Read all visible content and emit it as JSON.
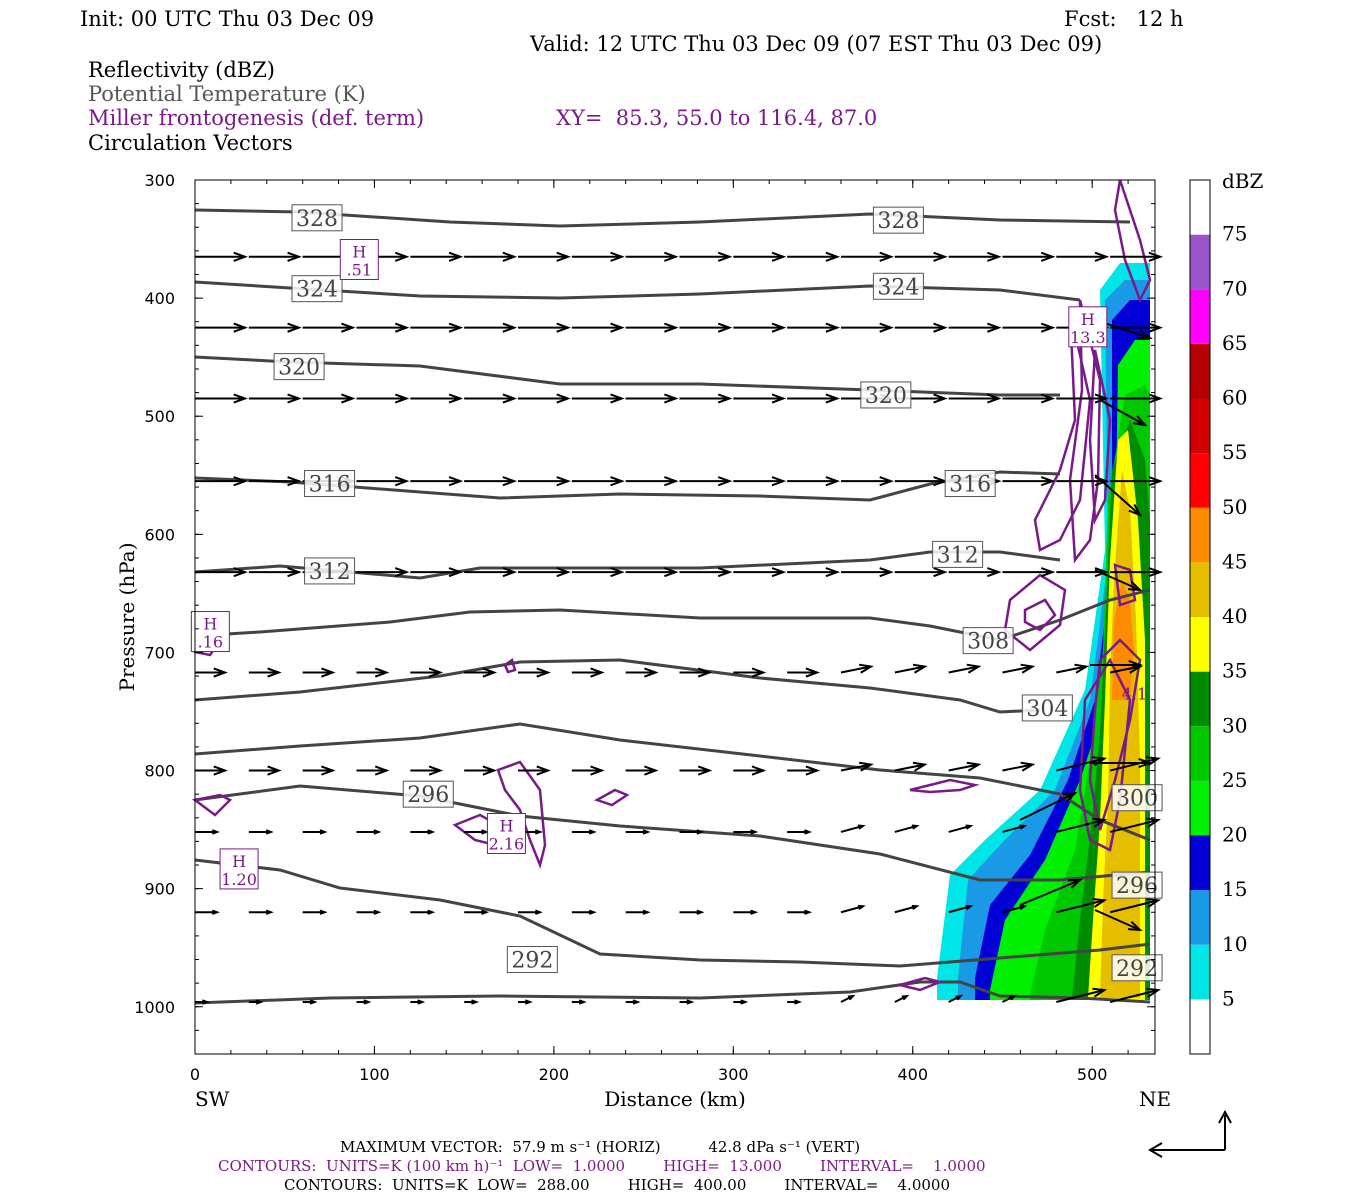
{
  "header": {
    "init": "Init: 00 UTC Thu 03 Dec 09",
    "fcst": "Fcst:   12 h",
    "valid": "Valid: 12 UTC Thu 03 Dec 09 (07 EST Thu 03 Dec 09)",
    "field1": "Reflectivity (dBZ)",
    "field2": "Potential Temperature (K)",
    "field3": "Miller frontogenesis (def. term)",
    "xy": "XY=  85.3, 55.0 to 116.4, 87.0",
    "field4": "Circulation Vectors"
  },
  "footer": {
    "max_vector": "MAXIMUM VECTOR:  57.9 m s⁻¹ (HORIZ)          42.8 dPa s⁻¹ (VERT)",
    "contours_fronto": "CONTOURS:  UNITS=K (100 km h)⁻¹  LOW=  1.0000        HIGH=  13.000        INTERVAL=    1.0000",
    "contours_theta": "CONTOURS:  UNITS=K  LOW=  288.00        HIGH=  400.00        INTERVAL=    4.0000"
  },
  "colors": {
    "theta": "#444444",
    "fronto": "#7a1a8a",
    "vectors": "#000000"
  },
  "chart_data": {
    "type": "cross-section",
    "xlabel": "Distance (km)",
    "ylabel": "Pressure (hPa)",
    "x_left_label": "SW",
    "x_right_label": "NE",
    "xlim": [
      0,
      535
    ],
    "ylim": [
      1040,
      300
    ],
    "xticks": [
      0,
      100,
      200,
      300,
      400,
      500
    ],
    "yticks": [
      300,
      400,
      500,
      600,
      700,
      800,
      900,
      1000
    ],
    "colorbar": {
      "title": "dBZ",
      "labels": [
        5,
        10,
        15,
        20,
        25,
        30,
        35,
        40,
        45,
        50,
        55,
        60,
        65,
        70,
        75
      ],
      "colors": [
        "#ffffff",
        "#00e5e5",
        "#1a9ae6",
        "#0000d6",
        "#00f000",
        "#00c800",
        "#008c00",
        "#ffff00",
        "#e6be00",
        "#ff8c00",
        "#ff0000",
        "#d20000",
        "#b40000",
        "#ff00ff",
        "#9955c9",
        "#ffffff"
      ]
    },
    "theta_labels": [
      {
        "value": "328",
        "x": 68,
        "p": 332
      },
      {
        "value": "328",
        "x": 392,
        "p": 334
      },
      {
        "value": "324",
        "x": 68,
        "p": 392
      },
      {
        "value": "324",
        "x": 392,
        "p": 390
      },
      {
        "value": "320",
        "x": 58,
        "p": 458
      },
      {
        "value": "320",
        "x": 385,
        "p": 482
      },
      {
        "value": "316",
        "x": 75,
        "p": 557
      },
      {
        "value": "316",
        "x": 432,
        "p": 557
      },
      {
        "value": "312",
        "x": 75,
        "p": 631
      },
      {
        "value": "312",
        "x": 425,
        "p": 617
      },
      {
        "value": "308",
        "x": 442,
        "p": 690
      },
      {
        "value": "304",
        "x": 475,
        "p": 747
      },
      {
        "value": "300",
        "x": 525,
        "p": 823
      },
      {
        "value": "296",
        "x": 130,
        "p": 820
      },
      {
        "value": "296",
        "x": 525,
        "p": 897
      },
      {
        "value": "292",
        "x": 188,
        "p": 960
      },
      {
        "value": "292",
        "x": 525,
        "p": 967
      }
    ],
    "fronto_maxima": [
      {
        "label": "H",
        "value": ".51",
        "x": 91,
        "p": 369
      },
      {
        "label": "H",
        "value": "13.3",
        "x": 497,
        "p": 426
      },
      {
        "label": "H",
        "value": ".16",
        "x": 8,
        "p": 684
      },
      {
        "label": "H",
        "value": "2.16",
        "x": 173,
        "p": 855
      },
      {
        "label": "H",
        "value": "1.20",
        "x": 24,
        "p": 885
      },
      {
        "label": "",
        "value": "4.1",
        "x": 523,
        "p": 728
      }
    ]
  }
}
